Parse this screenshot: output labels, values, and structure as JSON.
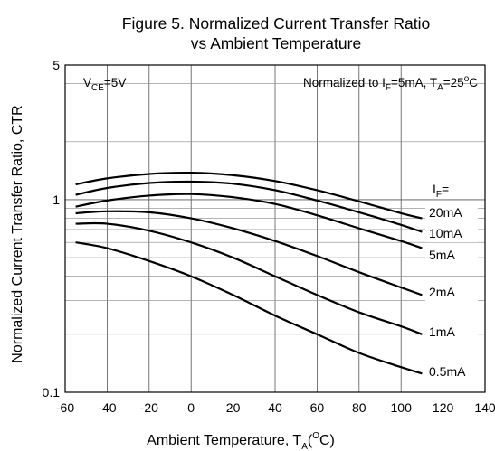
{
  "chart_data": {
    "type": "line",
    "title_line1": "Figure 5. Normalized Current Transfer Ratio",
    "title_line2": "vs Ambient Temperature",
    "xlabel_main": "Ambient Temperature, T",
    "xlabel_sub": "A",
    "xlabel_open": "(",
    "xlabel_sup": "O",
    "xlabel_close": "C)",
    "ylabel": "Normalized Current Transfer Ratio, CTR",
    "ylog": true,
    "xlim": [
      -60,
      140
    ],
    "ylim": [
      0.1,
      5
    ],
    "grid": true,
    "x_ticks": [
      -60,
      -40,
      -20,
      0,
      20,
      40,
      60,
      80,
      100,
      120,
      140
    ],
    "y_ticks": [
      {
        "value": 5,
        "label": "5"
      },
      {
        "value": 1,
        "label": "1"
      },
      {
        "value": 0.1,
        "label": "0.1"
      }
    ],
    "annotations": {
      "vce_main": "V",
      "vce_sub": "CE",
      "vce_rest": "=5V",
      "norm_prefix": "Normalized to I",
      "norm_sub1": "F",
      "norm_mid": "=5mA, T",
      "norm_sub2": "A",
      "norm_eq": "=25",
      "norm_sup": "o",
      "norm_unit": "C",
      "legend_main": "I",
      "legend_sub": "F",
      "legend_rest": "="
    },
    "x": [
      -55,
      -40,
      -20,
      0,
      20,
      40,
      60,
      80,
      100,
      110
    ],
    "series": [
      {
        "name": "20mA",
        "values": [
          1.2,
          1.29,
          1.36,
          1.38,
          1.34,
          1.25,
          1.12,
          0.98,
          0.85,
          0.8
        ]
      },
      {
        "name": "10mA",
        "values": [
          1.06,
          1.15,
          1.22,
          1.24,
          1.21,
          1.12,
          0.99,
          0.86,
          0.74,
          0.68
        ]
      },
      {
        "name": "5mA",
        "values": [
          0.92,
          0.99,
          1.05,
          1.07,
          1.03,
          0.95,
          0.83,
          0.71,
          0.61,
          0.56
        ]
      },
      {
        "name": "2mA",
        "values": [
          0.85,
          0.87,
          0.86,
          0.8,
          0.71,
          0.61,
          0.51,
          0.42,
          0.35,
          0.32
        ]
      },
      {
        "name": "1mA",
        "values": [
          0.75,
          0.75,
          0.69,
          0.6,
          0.5,
          0.4,
          0.32,
          0.26,
          0.22,
          0.2
        ]
      },
      {
        "name": "0.5mA",
        "values": [
          0.6,
          0.56,
          0.48,
          0.4,
          0.32,
          0.25,
          0.2,
          0.16,
          0.135,
          0.125
        ]
      }
    ]
  }
}
